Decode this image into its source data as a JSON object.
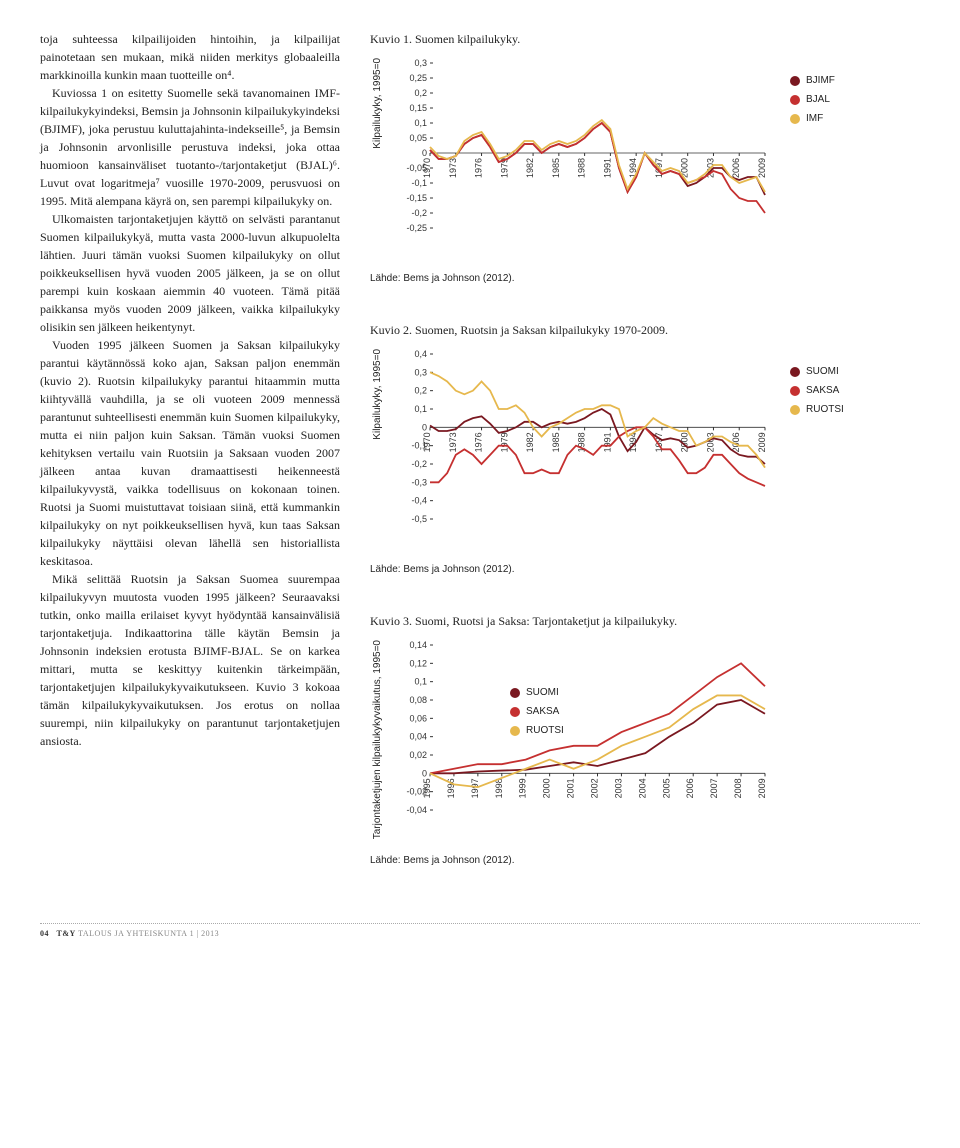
{
  "text": {
    "body": "toja suhteessa kilpailijoiden hintoihin, ja kilpailijat painotetaan sen mukaan, mikä niiden merkitys globaaleilla markkinoilla kunkin maan tuotteille on⁴.\n\nKuviossa 1 on esitetty Suomelle sekä tavanomainen IMF-kilpailukykyindeksi, Bemsin ja Johnsonin kilpailukykyindeksi (BJIMF), joka perustuu kuluttajahinta-indekseille⁵, ja Bemsin ja Johnsonin arvonlisille perustuva indeksi, joka ottaa huomioon kansainväliset tuotanto-/tarjontaketjut (BJAL)⁶. Luvut ovat logaritmeja⁷ vuosille 1970-2009, perusvuosi on 1995. Mitä alempana käyrä on, sen parempi kilpailukyky on.\n\nUlkomaisten tarjontaketjujen käyttö on selvästi parantanut Suomen kilpailukykyä, mutta vasta 2000-luvun alkupuolelta lähtien. Juuri tämän vuoksi Suomen kilpailukyky on ollut poikkeuksellisen hyvä vuoden 2005 jälkeen, ja se on ollut parempi kuin koskaan aiemmin 40 vuoteen. Tämä pitää paikkansa myös vuoden 2009 jälkeen, vaikka kilpailukyky olisikin sen jälkeen heikentynyt.\n\nVuoden 1995 jälkeen Suomen ja Saksan kilpailukyky parantui käytännössä koko ajan, Saksan paljon enemmän (kuvio 2). Ruotsin kilpailukyky parantui hitaammin mutta kiihtyvällä vauhdilla, ja se oli vuoteen 2009 mennessä parantunut suhteellisesti enemmän kuin Suomen kilpailukyky, mutta ei niin paljon kuin Saksan. Tämän vuoksi Suomen kehityksen vertailu vain Ruotsiin ja Saksaan vuoden 2007 jälkeen antaa kuvan dramaattisesti heikenneestä kilpailukyvystä, vaikka todellisuus on kokonaan toinen. Ruotsi ja Suomi muistuttavat toisiaan siinä, että kummankin kilpailukyky on nyt poikkeuksellisen hyvä, kun taas Saksan kilpailukyky näyttäisi olevan lähellä sen historiallista keskitasoa.\n\nMikä selittää Ruotsin ja Saksan Suomea suurempaa kilpailukyvyn muutosta vuoden 1995 jälkeen? Seuraavaksi tutkin, onko mailla erilaiset kyvyt hyödyntää kansainvälisiä tarjontaketjuja. Indikaattorina tälle käytän Bemsin ja Johnsonin indeksien erotusta BJIMF-BJAL. Se on karkea mittari, mutta se keskittyy kuitenkin tärkeimpään, tarjontaketjujen kilpailukykyvaikutukseen. Kuvio 3 kokoaa tämän kilpailukykyvaikutuksen. Jos erotus on nollaa suurempi, niin kilpailukyky on parantunut tarjontaketjujen ansiosta."
  },
  "footer": {
    "page": "04",
    "journal_bold": "T&Y",
    "journal_rest": "TALOUS JA YHTEISKUNTA   1 | 2013"
  },
  "colors": {
    "bjimf": "#7a1820",
    "bjal": "#c53030",
    "imf": "#e6b84d",
    "suomi": "#7a1820",
    "saksa": "#c53030",
    "ruotsi": "#e6b84d",
    "grid": "#cccccc",
    "axis": "#333333"
  },
  "chart1": {
    "title": "Kuvio 1. Suomen kilpailukyky.",
    "y_label": "Kilpailukyky, 1995=0",
    "source": "Lähde: Bems ja Johnson (2012).",
    "ylim": [
      -0.25,
      0.3
    ],
    "yticks": [
      -0.25,
      -0.2,
      -0.15,
      -0.1,
      -0.05,
      0,
      0.05,
      0.1,
      0.15,
      0.2,
      0.25,
      0.3
    ],
    "xlim": [
      1970,
      2009
    ],
    "xticks": [
      1970,
      1973,
      1976,
      1979,
      1982,
      1985,
      1988,
      1991,
      1994,
      1997,
      2000,
      2003,
      2006,
      2009
    ],
    "legend": [
      {
        "label": "BJIMF",
        "color": "#7a1820"
      },
      {
        "label": "BJAL",
        "color": "#c53030"
      },
      {
        "label": "IMF",
        "color": "#e6b84d"
      }
    ],
    "series": {
      "BJIMF": [
        0.01,
        -0.02,
        -0.02,
        -0.01,
        0.03,
        0.05,
        0.06,
        0.02,
        -0.03,
        -0.02,
        0.0,
        0.03,
        0.03,
        0.0,
        0.02,
        0.03,
        0.02,
        0.03,
        0.05,
        0.08,
        0.1,
        0.07,
        -0.05,
        -0.13,
        -0.08,
        0.0,
        -0.04,
        -0.07,
        -0.06,
        -0.07,
        -0.11,
        -0.1,
        -0.08,
        -0.05,
        -0.05,
        -0.08,
        -0.09,
        -0.08,
        -0.08,
        -0.14
      ],
      "BJAL": [
        0.01,
        -0.02,
        -0.02,
        -0.01,
        0.03,
        0.05,
        0.06,
        0.02,
        -0.03,
        -0.02,
        0.0,
        0.03,
        0.03,
        0.0,
        0.02,
        0.03,
        0.02,
        0.03,
        0.05,
        0.08,
        0.1,
        0.07,
        -0.05,
        -0.13,
        -0.08,
        0.0,
        -0.04,
        -0.07,
        -0.06,
        -0.07,
        -0.1,
        -0.09,
        -0.08,
        -0.06,
        -0.07,
        -0.12,
        -0.15,
        -0.16,
        -0.16,
        -0.2
      ],
      "IMF": [
        0.02,
        -0.01,
        -0.02,
        -0.01,
        0.04,
        0.06,
        0.07,
        0.03,
        -0.02,
        -0.01,
        0.01,
        0.04,
        0.04,
        0.01,
        0.03,
        0.04,
        0.03,
        0.04,
        0.06,
        0.09,
        0.11,
        0.08,
        -0.04,
        -0.12,
        -0.07,
        0.0,
        -0.03,
        -0.06,
        -0.05,
        -0.06,
        -0.1,
        -0.09,
        -0.07,
        -0.04,
        -0.04,
        -0.08,
        -0.1,
        -0.09,
        -0.08,
        -0.13
      ]
    }
  },
  "chart2": {
    "title": "Kuvio 2. Suomen, Ruotsin ja Saksan kilpailukyky 1970-2009.",
    "y_label": "Kilpailukyky, 1995=0",
    "source": "Lähde: Bems ja Johnson (2012).",
    "ylim": [
      -0.5,
      0.4
    ],
    "yticks": [
      -0.5,
      -0.4,
      -0.3,
      -0.2,
      -0.1,
      0,
      0.1,
      0.2,
      0.3,
      0.4
    ],
    "xlim": [
      1970,
      2009
    ],
    "xticks": [
      1970,
      1973,
      1976,
      1979,
      1982,
      1985,
      1988,
      1991,
      1994,
      1997,
      2000,
      2003,
      2006,
      2009
    ],
    "legend": [
      {
        "label": "SUOMI",
        "color": "#7a1820"
      },
      {
        "label": "SAKSA",
        "color": "#c53030"
      },
      {
        "label": "RUOTSI",
        "color": "#e6b84d"
      }
    ],
    "series": {
      "SUOMI": [
        0.01,
        -0.02,
        -0.02,
        -0.01,
        0.03,
        0.05,
        0.06,
        0.02,
        -0.03,
        -0.02,
        0.0,
        0.03,
        0.03,
        0.0,
        0.02,
        0.03,
        0.02,
        0.03,
        0.05,
        0.08,
        0.1,
        0.07,
        -0.05,
        -0.13,
        -0.08,
        0.0,
        -0.04,
        -0.07,
        -0.06,
        -0.07,
        -0.11,
        -0.1,
        -0.08,
        -0.06,
        -0.07,
        -0.12,
        -0.15,
        -0.16,
        -0.16,
        -0.2
      ],
      "SAKSA": [
        -0.3,
        -0.3,
        -0.25,
        -0.15,
        -0.12,
        -0.15,
        -0.2,
        -0.15,
        -0.1,
        -0.1,
        -0.15,
        -0.25,
        -0.25,
        -0.23,
        -0.25,
        -0.25,
        -0.15,
        -0.1,
        -0.12,
        -0.15,
        -0.1,
        -0.1,
        -0.05,
        -0.02,
        0.0,
        0.0,
        -0.05,
        -0.12,
        -0.12,
        -0.18,
        -0.25,
        -0.25,
        -0.22,
        -0.15,
        -0.15,
        -0.2,
        -0.25,
        -0.28,
        -0.3,
        -0.32
      ],
      "RUOTSI": [
        0.3,
        0.28,
        0.25,
        0.2,
        0.18,
        0.2,
        0.25,
        0.2,
        0.1,
        0.1,
        0.12,
        0.08,
        0.0,
        -0.05,
        0.0,
        0.02,
        0.05,
        0.08,
        0.1,
        0.1,
        0.12,
        0.12,
        0.1,
        -0.05,
        -0.02,
        0.0,
        0.05,
        0.02,
        0.0,
        -0.02,
        -0.02,
        -0.1,
        -0.08,
        -0.05,
        -0.05,
        -0.08,
        -0.1,
        -0.1,
        -0.15,
        -0.22
      ]
    }
  },
  "chart3": {
    "title": "Kuvio 3. Suomi, Ruotsi ja Saksa: Tarjontaketjut ja kilpailukyky.",
    "y_label": "Tarjontaketjujen kilpailukykyvaikutus, 1995=0",
    "source": "Lähde: Bems ja Johnson (2012).",
    "ylim": [
      -0.04,
      0.14
    ],
    "yticks": [
      -0.04,
      -0.02,
      0,
      0.02,
      0.04,
      0.06,
      0.08,
      0.1,
      0.12,
      0.14
    ],
    "xlim": [
      1995,
      2009
    ],
    "xticks": [
      1995,
      1996,
      1997,
      1998,
      1999,
      2000,
      2001,
      2002,
      2003,
      2004,
      2005,
      2006,
      2007,
      2008,
      2009
    ],
    "legend": [
      {
        "label": "SUOMI",
        "color": "#7a1820"
      },
      {
        "label": "SAKSA",
        "color": "#c53030"
      },
      {
        "label": "RUOTSI",
        "color": "#e6b84d"
      }
    ],
    "series": {
      "SUOMI": [
        0.0,
        0.0,
        0.002,
        0.003,
        0.004,
        0.008,
        0.012,
        0.008,
        0.015,
        0.022,
        0.04,
        0.055,
        0.075,
        0.08,
        0.065
      ],
      "SAKSA": [
        0.0,
        0.005,
        0.01,
        0.01,
        0.015,
        0.025,
        0.03,
        0.03,
        0.045,
        0.055,
        0.065,
        0.085,
        0.105,
        0.12,
        0.095
      ],
      "RUOTSI": [
        0.0,
        -0.012,
        -0.015,
        -0.005,
        0.005,
        0.015,
        0.005,
        0.015,
        0.03,
        0.04,
        0.05,
        0.07,
        0.085,
        0.085,
        0.07
      ]
    }
  }
}
